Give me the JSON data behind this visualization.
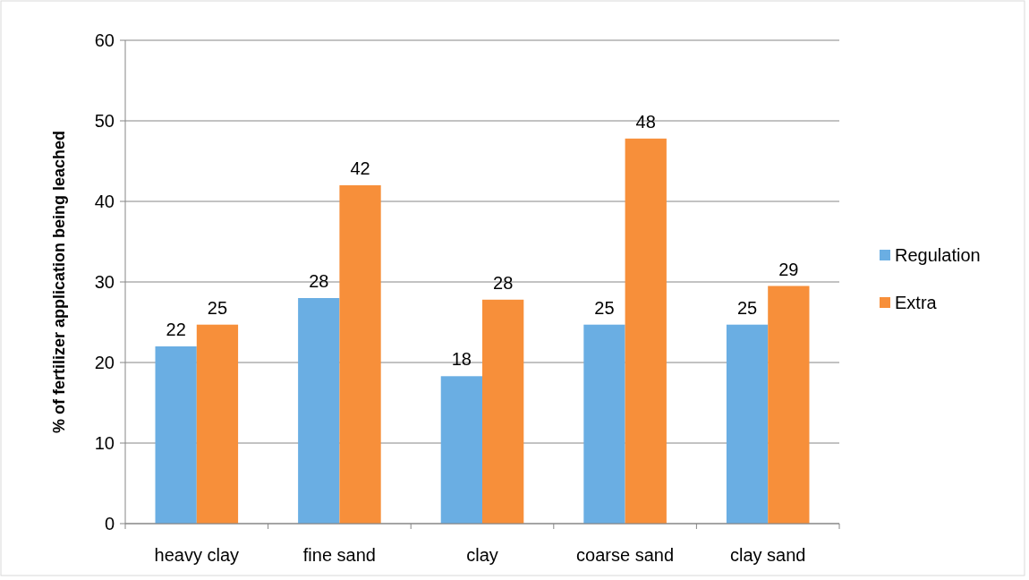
{
  "chart_data": {
    "type": "bar",
    "ylabel": "% of fertilizer application being leached",
    "categories": [
      "heavy clay",
      "fine sand",
      "clay",
      "coarse sand",
      "clay sand"
    ],
    "series": [
      {
        "name": "Regulation",
        "color": "#6aaee3",
        "values": [
          22,
          28,
          18.3,
          24.7,
          24.7
        ],
        "value_labels": [
          "22",
          "28",
          "18",
          "25",
          "25"
        ]
      },
      {
        "name": "Extra",
        "color": "#f78f3a",
        "values": [
          24.7,
          42,
          27.8,
          47.8,
          29.5
        ],
        "value_labels": [
          "25",
          "42",
          "28",
          "48",
          "29"
        ]
      }
    ],
    "ylim": [
      0,
      60
    ],
    "yticks": [
      0,
      10,
      20,
      30,
      40,
      50,
      60
    ],
    "grid": "y",
    "legend": "right"
  }
}
